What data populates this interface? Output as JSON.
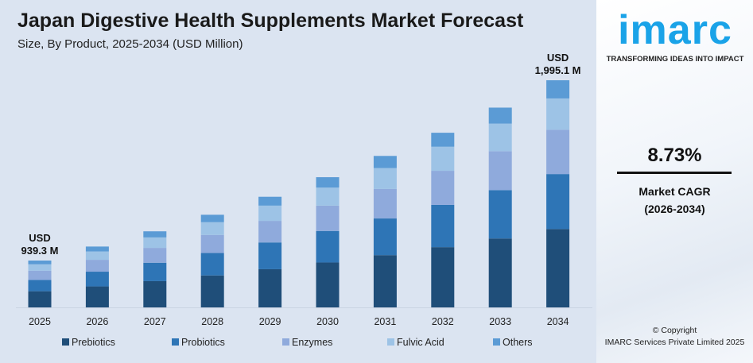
{
  "brand": {
    "logo_text": "imarc",
    "tagline": "TRANSFORMING IDEAS INTO IMPACT"
  },
  "cagr": {
    "value": "8.73%",
    "label": "Market CAGR",
    "period": "(2026-2034)"
  },
  "copyright": {
    "line1": "© Copyright",
    "line2": "IMARC Services Private Limited 2025"
  },
  "colors": {
    "background": "#dbe4f1",
    "accent": "#1aa3e8"
  },
  "chart_data": {
    "type": "bar",
    "stacked": true,
    "title": "Japan Digestive Health Supplements Market Forecast",
    "subtitle": "Size, By Product, 2025-2034 (USD Million)",
    "xlabel": "",
    "ylabel": "",
    "grid": false,
    "legend": "bottom",
    "categories": [
      "2025",
      "2026",
      "2027",
      "2028",
      "2029",
      "2030",
      "2031",
      "2032",
      "2033",
      "2034"
    ],
    "series": [
      {
        "name": "Prebiotics",
        "color": "#1f4e79",
        "values": [
          324.1,
          352.3,
          383.1,
          416.6,
          452.9,
          492.5,
          535.4,
          582.2,
          633.0,
          688.3
        ]
      },
      {
        "name": "Probiotics",
        "color": "#2e75b6",
        "values": [
          227.3,
          247.2,
          268.7,
          292.2,
          317.7,
          345.4,
          375.6,
          408.4,
          444.0,
          482.8
        ]
      },
      {
        "name": "Enzymes",
        "color": "#8faadc",
        "values": [
          183.2,
          199.2,
          216.5,
          235.4,
          256.0,
          278.3,
          302.6,
          329.1,
          357.8,
          389.0
        ]
      },
      {
        "name": "Fulvic Acid",
        "color": "#9dc3e6",
        "values": [
          129.6,
          140.9,
          153.2,
          166.6,
          181.2,
          197.0,
          214.2,
          232.9,
          253.2,
          275.3
        ]
      },
      {
        "name": "Others",
        "color": "#5b9bd5",
        "values": [
          75.1,
          81.7,
          89.0,
          96.6,
          105.0,
          114.2,
          124.2,
          135.0,
          146.8,
          159.6
        ]
      }
    ],
    "annotations": [
      {
        "category": "2025",
        "line1": "USD",
        "line2": "939.3 M"
      },
      {
        "category": "2034",
        "line1": "USD",
        "line2": "1,995.1 M"
      }
    ]
  }
}
